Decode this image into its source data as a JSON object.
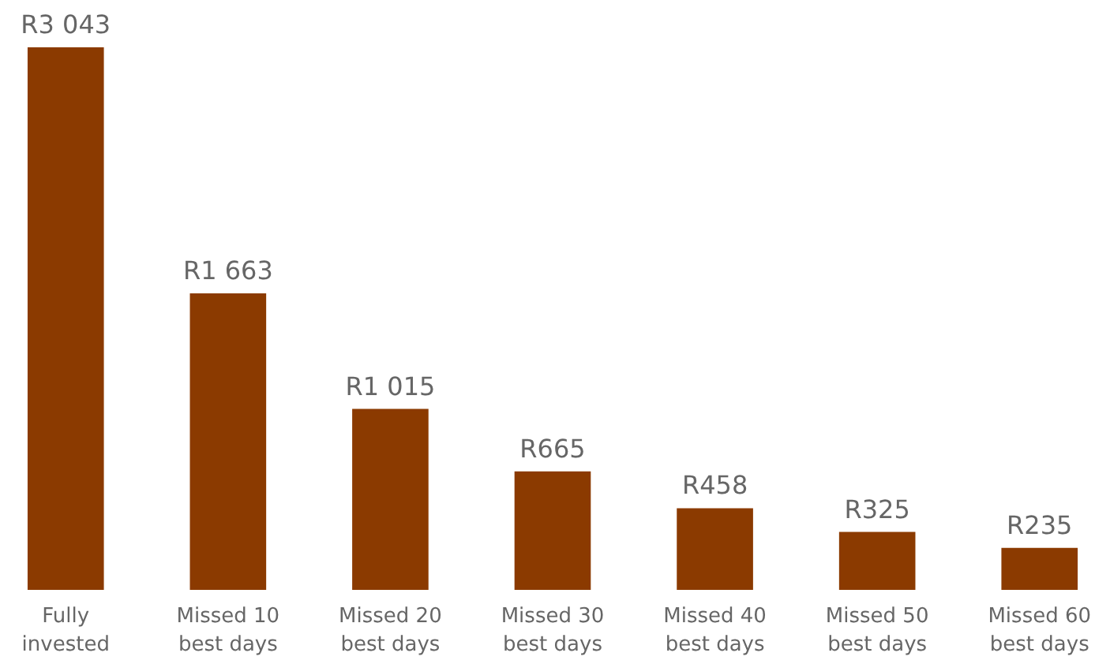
{
  "chart_data": {
    "type": "bar",
    "categories": [
      "Fully invested",
      "Missed 10 best days",
      "Missed 20 best days",
      "Missed 30 best days",
      "Missed 40 best days",
      "Missed 50 best days",
      "Missed 60 best days"
    ],
    "values": [
      3043,
      1663,
      1015,
      665,
      458,
      325,
      235
    ],
    "value_labels": [
      "R3 043",
      "R1 663",
      "R1 015",
      "R665",
      "R458",
      "R325",
      "R235"
    ],
    "color": "#8b3a00"
  }
}
